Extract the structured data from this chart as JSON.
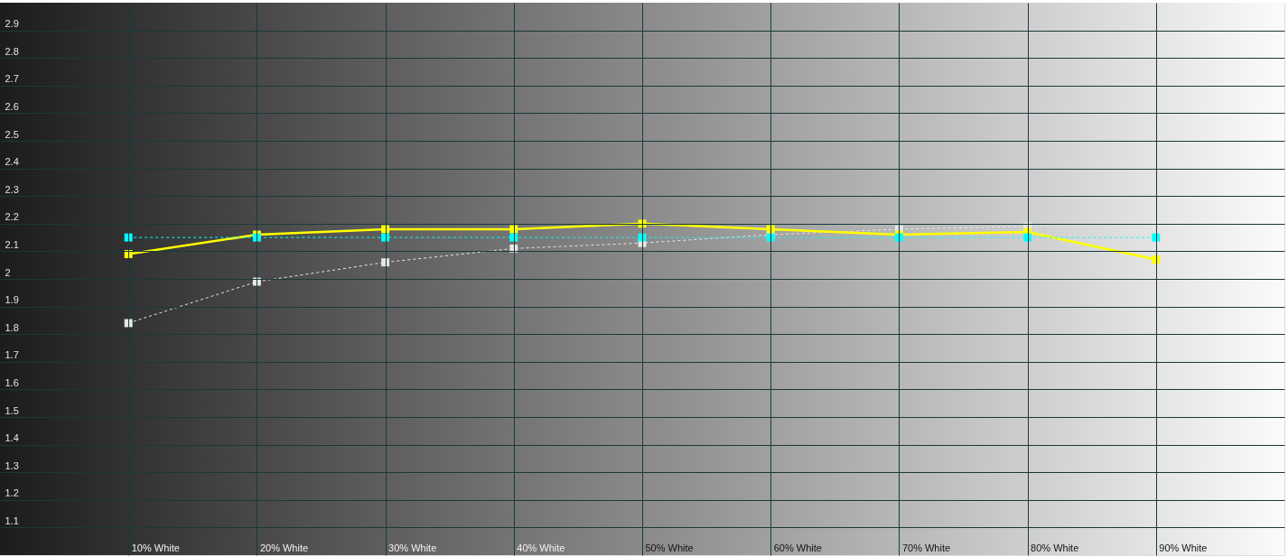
{
  "chart_data": {
    "type": "line",
    "categories": [
      "10% White",
      "20% White",
      "30% White",
      "40% White",
      "50% White",
      "60% White",
      "70% White",
      "80% White",
      "90% White"
    ],
    "series": [
      {
        "color": "#e6e6e6",
        "line_style": "dashed",
        "values": [
          1.84,
          1.99,
          2.06,
          2.11,
          2.13,
          2.16,
          2.18,
          2.19,
          2.2
        ]
      },
      {
        "color": "#ffff00",
        "line_style": "solid",
        "values": [
          2.09,
          2.16,
          2.18,
          2.18,
          2.2,
          2.18,
          2.16,
          2.17,
          2.07
        ]
      },
      {
        "color": "#00ffff",
        "line_style": "dashed",
        "values": [
          2.15,
          2.15,
          2.15,
          2.15,
          2.15,
          2.15,
          2.15,
          2.15,
          2.15
        ]
      }
    ],
    "ylim": [
      1,
      3
    ],
    "yticks": [
      1.1,
      1.2,
      1.3,
      1.4,
      1.5,
      1.6,
      1.7,
      1.8,
      1.9,
      2,
      2.1,
      2.2,
      2.3,
      2.4,
      2.5,
      2.6,
      2.7,
      2.8,
      2.9
    ],
    "grid": true,
    "legend": false,
    "marker": "square"
  }
}
